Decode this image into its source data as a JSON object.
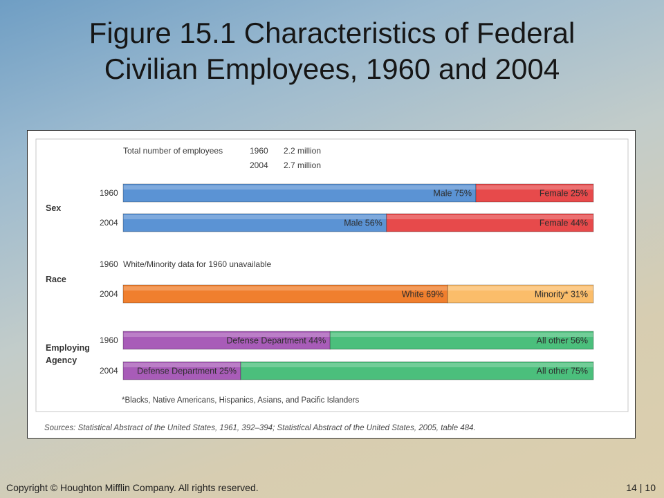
{
  "slide": {
    "title_line1": "Figure 15.1 Characteristics of Federal",
    "title_line2": "Civilian Employees, 1960 and 2004",
    "copyright": "Copyright © Houghton Mifflin Company. All rights reserved.",
    "page_current": "14",
    "page_separator": "|",
    "page_total": "10"
  },
  "colors": {
    "blue": "#5b93d4",
    "red": "#e74a4b",
    "orange": "#f07f2e",
    "light_orange": "#fbbd6a",
    "purple": "#a85cb8",
    "green": "#4bbf7c"
  },
  "chart_data": {
    "type": "bar",
    "orientation": "horizontal",
    "stacked": true,
    "unit": "%",
    "xlim": [
      0,
      100
    ],
    "header": {
      "label": "Total number of employees",
      "rows": [
        {
          "year": "1960",
          "value": "2.2 million"
        },
        {
          "year": "2004",
          "value": "2.7 million"
        }
      ]
    },
    "groups": [
      {
        "name": "Sex",
        "rows": [
          {
            "year": "1960",
            "segments": [
              {
                "label": "Male",
                "value": 75,
                "color": "#5b93d4"
              },
              {
                "label": "Female",
                "value": 25,
                "color": "#e74a4b"
              }
            ]
          },
          {
            "year": "2004",
            "segments": [
              {
                "label": "Male",
                "value": 56,
                "color": "#5b93d4"
              },
              {
                "label": "Female",
                "value": 44,
                "color": "#e74a4b"
              }
            ]
          }
        ]
      },
      {
        "name": "Race",
        "rows": [
          {
            "year": "1960",
            "note": "White/Minority data for 1960 unavailable"
          },
          {
            "year": "2004",
            "segments": [
              {
                "label": "White",
                "value": 69,
                "color": "#f07f2e"
              },
              {
                "label": "Minority*",
                "value": 31,
                "color": "#fbbd6a"
              }
            ]
          }
        ]
      },
      {
        "name_lines": [
          "Employing",
          "Agency"
        ],
        "rows": [
          {
            "year": "1960",
            "segments": [
              {
                "label": "Defense Department",
                "value": 44,
                "color": "#a85cb8"
              },
              {
                "label": "All other",
                "value": 56,
                "color": "#4bbf7c"
              }
            ]
          },
          {
            "year": "2004",
            "segments": [
              {
                "label": "Defense Department",
                "value": 25,
                "color": "#a85cb8"
              },
              {
                "label": "All other",
                "value": 75,
                "color": "#4bbf7c"
              }
            ]
          }
        ]
      }
    ],
    "footnote": "*Blacks, Native Americans, Hispanics, Asians, and Pacific Islanders",
    "source": "Sources: Statistical Abstract of the United States, 1961, 392–394; Statistical Abstract of the United States, 2005, table 484."
  }
}
